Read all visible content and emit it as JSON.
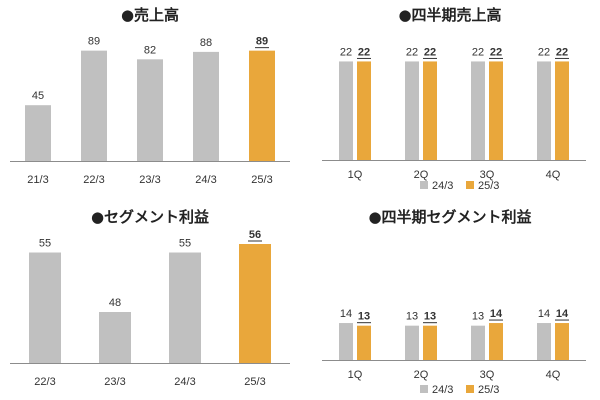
{
  "colors": {
    "grey": "#c0c0c0",
    "orange": "#e9a73b",
    "axis": "#8c8c8c",
    "text": "#333333"
  },
  "chart_data": [
    {
      "id": "sales",
      "type": "bar",
      "title": "●売上高",
      "categories": [
        "21/3",
        "22/3",
        "23/3",
        "24/3",
        "25/3"
      ],
      "values": [
        45,
        89,
        82,
        88,
        89
      ],
      "highlight_last": true,
      "ylim": [
        0,
        100
      ],
      "xlabel": "",
      "ylabel": ""
    },
    {
      "id": "quarterly-sales",
      "type": "bar",
      "title": "●四半期売上高",
      "categories": [
        "1Q",
        "2Q",
        "3Q",
        "4Q"
      ],
      "series": [
        {
          "name": "24/3",
          "values": [
            22,
            22,
            22,
            22
          ]
        },
        {
          "name": "25/3",
          "values": [
            22,
            22,
            22,
            22
          ]
        }
      ],
      "legend": "bottom",
      "ylim": [
        0,
        25
      ],
      "xlabel": "",
      "ylabel": ""
    },
    {
      "id": "segment-profit",
      "type": "bar",
      "title": "●セグメント利益",
      "categories": [
        "22/3",
        "23/3",
        "24/3",
        "25/3"
      ],
      "values": [
        55,
        48,
        55,
        56
      ],
      "highlight_last": true,
      "ylim": [
        42,
        58
      ],
      "xlabel": "",
      "ylabel": ""
    },
    {
      "id": "quarterly-segment-profit",
      "type": "bar",
      "title": "●四半期セグメント利益",
      "categories": [
        "1Q",
        "2Q",
        "3Q",
        "4Q"
      ],
      "series": [
        {
          "name": "24/3",
          "values": [
            14,
            13,
            13,
            14
          ]
        },
        {
          "name": "25/3",
          "values": [
            13,
            13,
            14,
            14
          ]
        }
      ],
      "legend": "bottom",
      "ylim": [
        0,
        25
      ],
      "xlabel": "",
      "ylabel": ""
    }
  ]
}
